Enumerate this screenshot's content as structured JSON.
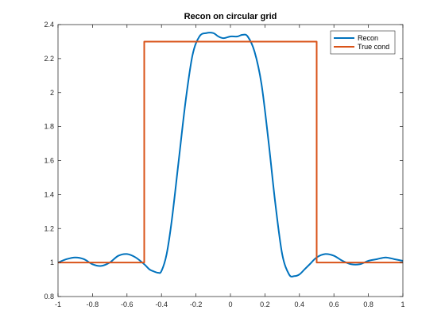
{
  "chart_data": {
    "type": "line",
    "title": "Recon on circular grid",
    "xlabel": "",
    "ylabel": "",
    "xlim": [
      -1,
      1
    ],
    "ylim": [
      0.8,
      2.4
    ],
    "xticks": [
      -1,
      -0.8,
      -0.6,
      -0.4,
      -0.2,
      0,
      0.2,
      0.4,
      0.6,
      0.8,
      1
    ],
    "xtick_labels": [
      "-1",
      "-0.8",
      "-0.6",
      "-0.4",
      "-0.2",
      "0",
      "0.2",
      "0.4",
      "0.6",
      "0.8",
      "1"
    ],
    "yticks": [
      0.8,
      1,
      1.2,
      1.4,
      1.6,
      1.8,
      2,
      2.2,
      2.4
    ],
    "ytick_labels": [
      "0.8",
      "1",
      "1.2",
      "1.4",
      "1.6",
      "1.8",
      "2",
      "2.2",
      "2.4"
    ],
    "grid": false,
    "legend_position": "top-right",
    "series": [
      {
        "name": "Recon",
        "color": "#0072BD",
        "x": [
          -1,
          -0.95,
          -0.9,
          -0.85,
          -0.8,
          -0.75,
          -0.7,
          -0.65,
          -0.6,
          -0.55,
          -0.5,
          -0.47,
          -0.45,
          -0.42,
          -0.4,
          -0.37,
          -0.34,
          -0.3,
          -0.26,
          -0.22,
          -0.18,
          -0.14,
          -0.1,
          -0.07,
          -0.04,
          0,
          0.04,
          0.07,
          0.1,
          0.14,
          0.18,
          0.22,
          0.26,
          0.3,
          0.34,
          0.37,
          0.4,
          0.43,
          0.46,
          0.5,
          0.55,
          0.6,
          0.65,
          0.7,
          0.75,
          0.8,
          0.85,
          0.9,
          0.95,
          1
        ],
        "y": [
          1.0,
          1.02,
          1.03,
          1.02,
          0.99,
          0.98,
          1.0,
          1.04,
          1.05,
          1.03,
          0.99,
          0.96,
          0.95,
          0.94,
          0.95,
          1.05,
          1.25,
          1.6,
          1.95,
          2.22,
          2.33,
          2.35,
          2.35,
          2.33,
          2.32,
          2.33,
          2.33,
          2.34,
          2.33,
          2.24,
          2.05,
          1.72,
          1.35,
          1.05,
          0.93,
          0.92,
          0.93,
          0.96,
          0.99,
          1.03,
          1.05,
          1.04,
          1.01,
          0.99,
          0.99,
          1.01,
          1.02,
          1.03,
          1.02,
          1.01
        ]
      },
      {
        "name": "True cond",
        "color": "#D95319",
        "x": [
          -1,
          -0.5,
          -0.5,
          0.5,
          0.5,
          1
        ],
        "y": [
          1,
          1,
          2.3,
          2.3,
          1,
          1
        ]
      }
    ]
  }
}
